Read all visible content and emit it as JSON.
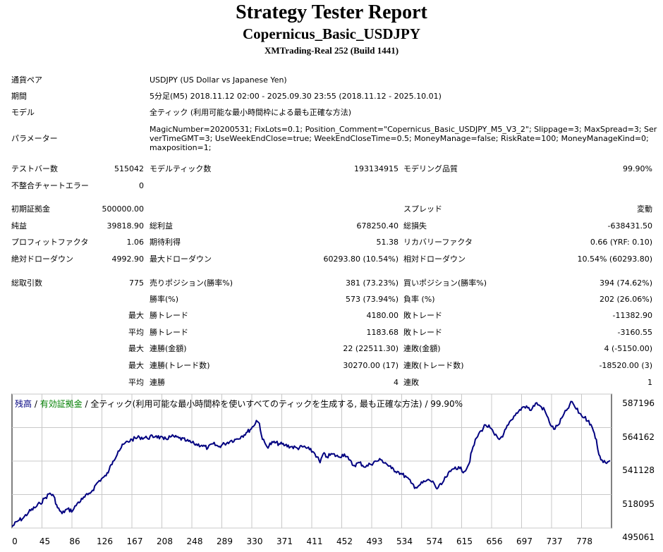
{
  "header": {
    "title": "Strategy Tester Report",
    "subtitle": "Copernicus_Basic_USDJPY",
    "server": "XMTrading-Real 252 (Build 1441)"
  },
  "settings": {
    "pair_label": "通貨ペア",
    "pair_value": "USDJPY (US Dollar vs Japanese Yen)",
    "period_label": "期間",
    "period_value": "5分足(M5) 2018.11.12 02:00 - 2025.09.30 23:55 (2018.11.12 - 2025.10.01)",
    "model_label": "モデル",
    "model_value": "全ティック (利用可能な最小時間枠による最も正確な方法)",
    "params_label": "パラメーター",
    "params_value": "MagicNumber=20200531; FixLots=0.1; Position_Comment=\"Copernicus_Basic_USDJPY_M5_V3_2\"; Slippage=3; MaxSpread=3; ServerTimeGMT=3; UseWeekEndClose=true; WeekEndCloseTime=0.5; MoneyManage=false; RiskRate=100; MoneyManageKind=0; maxposition=1;"
  },
  "stats": {
    "bars_label": "テストバー数",
    "bars_value": "515042",
    "ticks_label": "モデルティック数",
    "ticks_value": "193134915",
    "quality_label": "モデリング品質",
    "quality_value": "99.90%",
    "mismatch_label": "不整合チャートエラー",
    "mismatch_value": "0",
    "deposit_label": "初期証拠金",
    "deposit_value": "500000.00",
    "spread_label": "スプレッド",
    "spread_value": "変動",
    "net_label": "純益",
    "net_value": "39818.90",
    "gross_profit_label": "総利益",
    "gross_profit_value": "678250.40",
    "gross_loss_label": "総損失",
    "gross_loss_value": "-638431.50",
    "pf_label": "プロフィットファクタ",
    "pf_value": "1.06",
    "expected_label": "期待利得",
    "expected_value": "51.38",
    "recovery_label": "リカバリーファクタ",
    "recovery_value": "0.66 (YRF: 0.10)",
    "abs_dd_label": "絶対ドローダウン",
    "abs_dd_value": "4992.90",
    "max_dd_label": "最大ドローダウン",
    "max_dd_value": "60293.80 (10.54%)",
    "rel_dd_label": "相対ドローダウン",
    "rel_dd_value": "10.54% (60293.80)",
    "trades_label": "総取引数",
    "trades_value": "775",
    "short_label": "売りポジション(勝率%)",
    "short_value": "381 (73.23%)",
    "long_label": "買いポジション(勝率%)",
    "long_value": "394 (74.62%)",
    "win_label": "勝率(%)",
    "win_value": "573 (73.94%)",
    "loss_label": "負率 (%)",
    "loss_value": "202 (26.06%)",
    "largest_label": "最大",
    "largest_win_label": "勝トレード",
    "largest_win_value": "4180.00",
    "largest_loss_label": "敗トレード",
    "largest_loss_value": "-11382.90",
    "average_label": "平均",
    "avg_win_label": "勝トレード",
    "avg_win_value": "1183.68",
    "avg_loss_label": "敗トレード",
    "avg_loss_value": "-3160.55",
    "max_cons_label": "最大",
    "max_cons_wins_label": "連勝(金額)",
    "max_cons_wins_value": "22 (22511.30)",
    "max_cons_losses_label": "連敗(金額)",
    "max_cons_losses_value": "4 (-5150.00)",
    "max_cons2_label": "最大",
    "max_cons_profit_label": "連勝(トレード数)",
    "max_cons_profit_value": "30270.00 (17)",
    "max_cons_loss_label": "連敗(トレード数)",
    "max_cons_loss_value": "-18520.00 (3)",
    "avg_cons_label": "平均",
    "avg_cons_wins_label": "連勝",
    "avg_cons_wins_value": "4",
    "avg_cons_losses_label": "連敗",
    "avg_cons_losses_value": "1"
  },
  "chart_data": {
    "type": "line",
    "legend": {
      "balance": "残高",
      "sep1": " / ",
      "equity": "有効証拠金",
      "sep2": " / ",
      "model": "全ティック(利用可能な最小時間枠を使いすべてのティックを生成する, 最も正確な方法)",
      "sep3": " / ",
      "quality": "99.90%"
    },
    "colors": {
      "balance": "#000080",
      "equity": "#008000",
      "grid": "#c8c8c8"
    },
    "y_ticks": [
      "587196",
      "564162",
      "541128",
      "518095",
      "495061"
    ],
    "x_ticks": [
      "0",
      "45",
      "86",
      "126",
      "167",
      "208",
      "248",
      "289",
      "330",
      "371",
      "411",
      "452",
      "493",
      "534",
      "574",
      "615",
      "656",
      "697",
      "737",
      "778"
    ],
    "xlim": [
      0,
      790
    ],
    "ylim": [
      495061,
      587196
    ],
    "series": [
      {
        "points": [
          [
            0,
            496000
          ],
          [
            8,
            500000
          ],
          [
            15,
            502000
          ],
          [
            22,
            506000
          ],
          [
            30,
            509000
          ],
          [
            37,
            512000
          ],
          [
            44,
            516000
          ],
          [
            50,
            519000
          ],
          [
            55,
            517000
          ],
          [
            60,
            509000
          ],
          [
            66,
            505000
          ],
          [
            72,
            508000
          ],
          [
            80,
            507000
          ],
          [
            86,
            512000
          ],
          [
            93,
            515000
          ],
          [
            100,
            518000
          ],
          [
            106,
            521000
          ],
          [
            112,
            526000
          ],
          [
            118,
            529000
          ],
          [
            124,
            531000
          ],
          [
            128,
            535000
          ],
          [
            133,
            541000
          ],
          [
            140,
            548000
          ],
          [
            148,
            553000
          ],
          [
            158,
            556000
          ],
          [
            168,
            557500
          ],
          [
            178,
            557000
          ],
          [
            190,
            558500
          ],
          [
            200,
            556000
          ],
          [
            210,
            558000
          ],
          [
            220,
            557000
          ],
          [
            230,
            555000
          ],
          [
            240,
            553000
          ],
          [
            250,
            552000
          ],
          [
            258,
            550000
          ],
          [
            265,
            553000
          ],
          [
            272,
            551000
          ],
          [
            280,
            553000
          ],
          [
            288,
            555000
          ],
          [
            295,
            556000
          ],
          [
            302,
            558000
          ],
          [
            310,
            561000
          ],
          [
            318,
            565000
          ],
          [
            322,
            569000
          ],
          [
            326,
            567000
          ],
          [
            330,
            556000
          ],
          [
            336,
            551000
          ],
          [
            344,
            554000
          ],
          [
            352,
            553000
          ],
          [
            360,
            552000
          ],
          [
            368,
            551000
          ],
          [
            376,
            550000
          ],
          [
            384,
            551000
          ],
          [
            392,
            549000
          ],
          [
            398,
            547000
          ],
          [
            402,
            544000
          ],
          [
            406,
            540000
          ],
          [
            410,
            546000
          ],
          [
            415,
            544000
          ],
          [
            422,
            546000
          ],
          [
            430,
            544000
          ],
          [
            438,
            546000
          ],
          [
            444,
            542000
          ],
          [
            450,
            538000
          ],
          [
            458,
            540000
          ],
          [
            466,
            537000
          ],
          [
            472,
            539000
          ],
          [
            480,
            541000
          ],
          [
            486,
            542000
          ],
          [
            492,
            540000
          ],
          [
            500,
            536000
          ],
          [
            508,
            534000
          ],
          [
            514,
            532000
          ],
          [
            520,
            530000
          ],
          [
            526,
            526000
          ],
          [
            532,
            523000
          ],
          [
            538,
            525000
          ],
          [
            544,
            527000
          ],
          [
            550,
            528000
          ],
          [
            556,
            526000
          ],
          [
            560,
            522000
          ],
          [
            566,
            525000
          ],
          [
            572,
            530000
          ],
          [
            578,
            534000
          ],
          [
            584,
            537000
          ],
          [
            590,
            536000
          ],
          [
            596,
            534000
          ],
          [
            602,
            539000
          ],
          [
            606,
            548000
          ],
          [
            612,
            557000
          ],
          [
            618,
            562000
          ],
          [
            624,
            566000
          ],
          [
            630,
            564000
          ],
          [
            636,
            559000
          ],
          [
            642,
            556000
          ],
          [
            648,
            560000
          ],
          [
            654,
            566000
          ],
          [
            660,
            570000
          ],
          [
            666,
            574000
          ],
          [
            672,
            578000
          ],
          [
            678,
            579000
          ],
          [
            684,
            576000
          ],
          [
            690,
            581000
          ],
          [
            696,
            579000
          ],
          [
            702,
            576000
          ],
          [
            708,
            568000
          ],
          [
            714,
            563000
          ],
          [
            720,
            566000
          ],
          [
            726,
            572000
          ],
          [
            732,
            577000
          ],
          [
            738,
            582000
          ],
          [
            742,
            578000
          ],
          [
            748,
            574000
          ],
          [
            754,
            571000
          ],
          [
            760,
            569000
          ],
          [
            766,
            562000
          ],
          [
            770,
            556000
          ],
          [
            772,
            549000
          ],
          [
            776,
            542000
          ],
          [
            782,
            540000
          ],
          [
            788,
            541500
          ]
        ]
      }
    ]
  }
}
